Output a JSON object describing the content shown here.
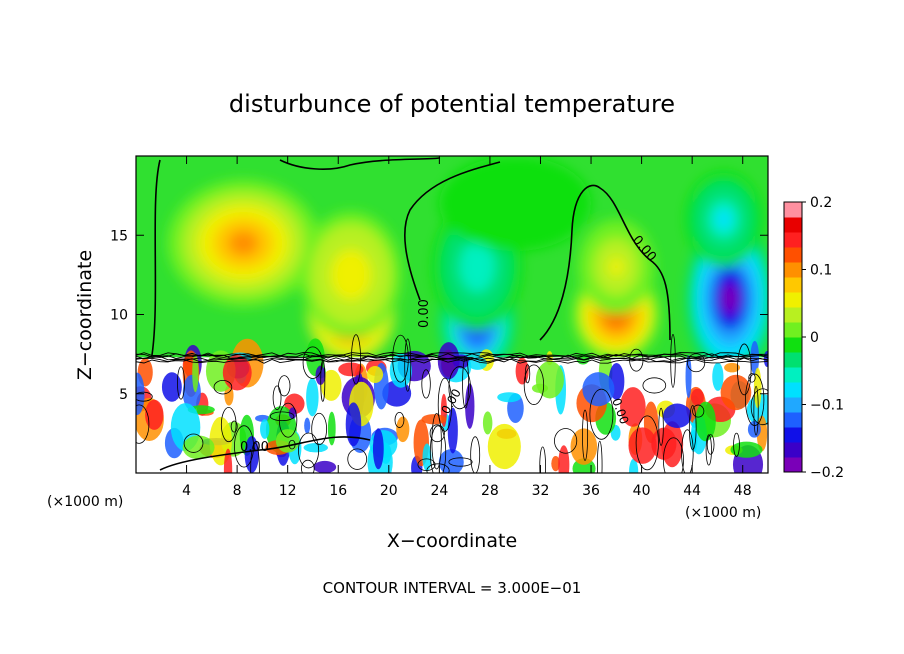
{
  "chart_data": {
    "type": "heatmap",
    "title": "disturbunce of potential temperature",
    "xlabel": "X−coordinate",
    "ylabel": "Z−coordinate",
    "x_unit_left": "(×1000 m)",
    "x_unit_right": "(×1000 m)",
    "xlim": [
      0,
      50
    ],
    "ylim": [
      0,
      20
    ],
    "x_ticks": [
      "4",
      "8",
      "12",
      "16",
      "20",
      "24",
      "28",
      "32",
      "36",
      "40",
      "44",
      "48"
    ],
    "y_ticks": [
      "5",
      "10",
      "15"
    ],
    "colorbar": {
      "min": -0.2,
      "max": 0.2,
      "labels": [
        "0.2",
        "0.1",
        "0",
        "−0.1",
        "−0.2"
      ],
      "colors": [
        "#7a00b8",
        "#3a00c8",
        "#1010e8",
        "#1e60ff",
        "#20a8ff",
        "#00e0ff",
        "#00f0c0",
        "#00e070",
        "#10e010",
        "#70f020",
        "#b8f020",
        "#f0f000",
        "#ffc800",
        "#ff9000",
        "#ff5000",
        "#ff2020",
        "#e80000",
        "#ff90a0"
      ]
    },
    "contour_labels": [
      "0.00",
      "0.00",
      "0.00",
      "0.00",
      "0.00"
    ],
    "footnote": "CONTOUR INTERVAL = 3.000E−01",
    "blobs": [
      {
        "x": 8.5,
        "z": 14.5,
        "rx": 6,
        "rz": 4,
        "v": 0.1
      },
      {
        "x": 17,
        "z": 10,
        "rx": 3.5,
        "rz": 3,
        "v": 0.17
      },
      {
        "x": 17,
        "z": 12.5,
        "rx": 4,
        "rz": 4,
        "v": 0.07
      },
      {
        "x": 27,
        "z": 9.5,
        "rx": 3,
        "rz": 3.5,
        "v": -0.17
      },
      {
        "x": 27,
        "z": 13,
        "rx": 3.5,
        "rz": 4,
        "v": -0.07
      },
      {
        "x": 38,
        "z": 10,
        "rx": 3.5,
        "rz": 3,
        "v": 0.14
      },
      {
        "x": 38,
        "z": 13,
        "rx": 3,
        "rz": 3,
        "v": 0.05
      },
      {
        "x": 47,
        "z": 11,
        "rx": 3.5,
        "rz": 5,
        "v": -0.2
      },
      {
        "x": 46.5,
        "z": 16,
        "rx": 3,
        "rz": 3,
        "v": -0.08
      },
      {
        "x": 30,
        "z": 17,
        "rx": 6,
        "rz": 3,
        "v": -0.02
      }
    ]
  }
}
